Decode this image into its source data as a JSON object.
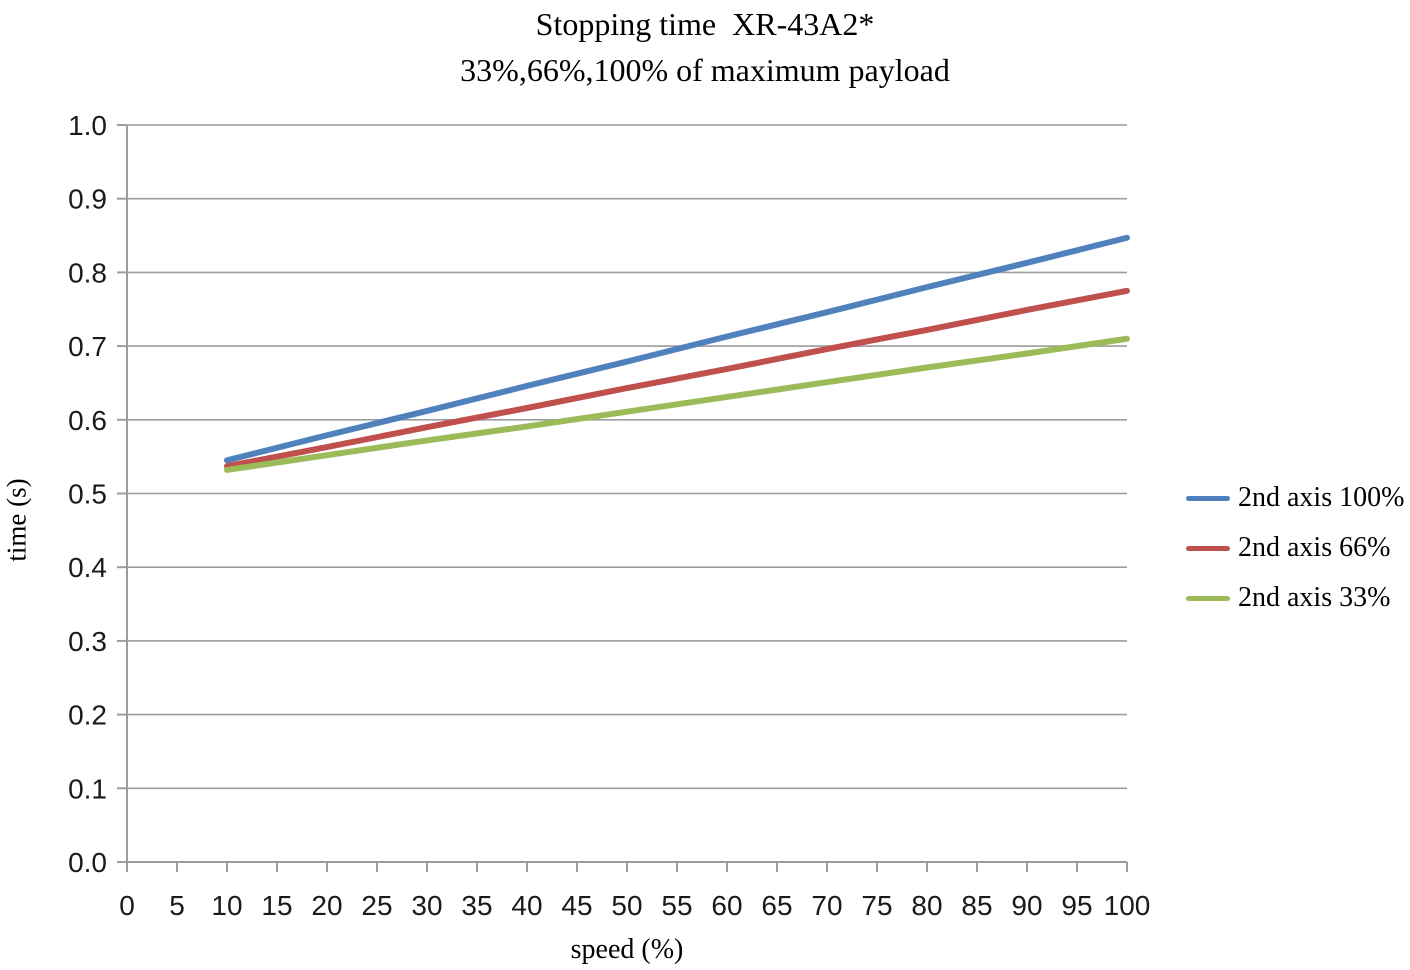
{
  "chart_data": {
    "type": "line",
    "title": "Stopping time  XR-43A2*",
    "subtitle": "33%,66%,100% of maximum payload",
    "xlabel": "speed (%)",
    "ylabel": "time (s)",
    "xlim": [
      0,
      100
    ],
    "ylim": [
      0.0,
      1.0
    ],
    "x_ticks": [
      0,
      5,
      10,
      15,
      20,
      25,
      30,
      35,
      40,
      45,
      50,
      55,
      60,
      65,
      70,
      75,
      80,
      85,
      90,
      95,
      100
    ],
    "x_tick_labels": [
      "0",
      "5",
      "10",
      "15",
      "20",
      "25",
      "30",
      "35",
      "40",
      "45",
      "50",
      "55",
      "60",
      "65",
      "70",
      "75",
      "80",
      "85",
      "90",
      "95",
      "100"
    ],
    "y_ticks": [
      0.0,
      0.1,
      0.2,
      0.3,
      0.4,
      0.5,
      0.6,
      0.7,
      0.8,
      0.9,
      1.0
    ],
    "y_tick_labels": [
      "0.0",
      "0.1",
      "0.2",
      "0.3",
      "0.4",
      "0.5",
      "0.6",
      "0.7",
      "0.8",
      "0.9",
      "1.0"
    ],
    "grid": "horizontal gridlines at every 0.1",
    "legend_position": "right",
    "x": [
      10,
      20,
      30,
      40,
      50,
      60,
      70,
      80,
      90,
      100
    ],
    "series": [
      {
        "name": "2nd axis 100%",
        "color": "#4F81BD",
        "values": [
          0.545,
          0.579,
          0.612,
          0.646,
          0.679,
          0.713,
          0.746,
          0.78,
          0.813,
          0.847
        ]
      },
      {
        "name": "2nd axis 66%",
        "color": "#C0504D",
        "values": [
          0.537,
          0.563,
          0.59,
          0.616,
          0.643,
          0.669,
          0.696,
          0.722,
          0.749,
          0.775
        ]
      },
      {
        "name": "2nd axis 33%",
        "color": "#9BBB59",
        "values": [
          0.532,
          0.552,
          0.572,
          0.591,
          0.611,
          0.631,
          0.651,
          0.671,
          0.69,
          0.71
        ]
      }
    ],
    "colors": {
      "gridline": "#9C9C9C",
      "axis": "#9C9C9C",
      "text": "#000000"
    }
  }
}
